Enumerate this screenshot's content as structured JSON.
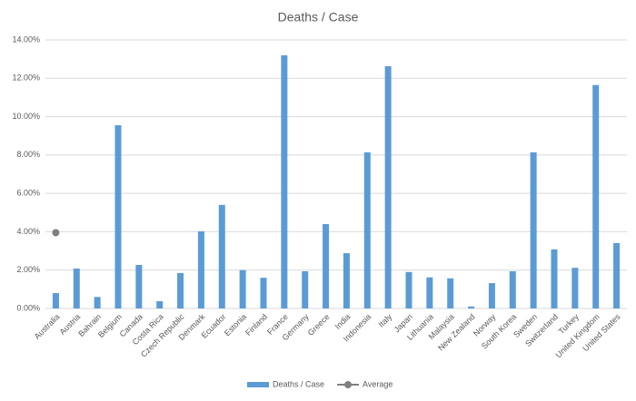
{
  "chart_data": {
    "type": "bar",
    "title": "Deaths / Case",
    "categories": [
      "Australia",
      "Austria",
      "Bahrain",
      "Belgium",
      "Canada",
      "Costa Rica",
      "Czech Republic",
      "Denmark",
      "Ecuador",
      "Estonia",
      "Finland",
      "France",
      "Germany",
      "Greece",
      "India",
      "Indonesia",
      "Italy",
      "Japan",
      "Lithuania",
      "Malaysia",
      "New Zealand",
      "Norway",
      "South Korea",
      "Sweden",
      "Switzerland",
      "Turkey",
      "United Kingdom",
      "United States"
    ],
    "series": [
      {
        "name": "Deaths / Case",
        "type": "bar",
        "color": "#5b9bd5",
        "values": [
          0.8,
          2.08,
          0.6,
          9.55,
          2.27,
          0.38,
          1.85,
          4.02,
          5.4,
          2.0,
          1.6,
          13.2,
          1.94,
          4.4,
          2.88,
          8.14,
          12.63,
          1.9,
          1.62,
          1.57,
          0.1,
          1.32,
          1.94,
          8.14,
          3.08,
          2.12,
          11.65,
          3.41
        ]
      },
      {
        "name": "Average",
        "type": "line",
        "color": "#7f7f7f",
        "values": [
          3.95,
          null,
          null,
          null,
          null,
          null,
          null,
          null,
          null,
          null,
          null,
          null,
          null,
          null,
          null,
          null,
          null,
          null,
          null,
          null,
          null,
          null,
          null,
          null,
          null,
          null,
          null,
          null
        ]
      }
    ],
    "ylim": [
      0,
      14
    ],
    "yticks": [
      {
        "value": 0,
        "label": "0.00%"
      },
      {
        "value": 2,
        "label": "2.00%"
      },
      {
        "value": 4,
        "label": "4.00%"
      },
      {
        "value": 6,
        "label": "6.00%"
      },
      {
        "value": 8,
        "label": "8.00%"
      },
      {
        "value": 10,
        "label": "10.00%"
      },
      {
        "value": 12,
        "label": "12.00%"
      },
      {
        "value": 14,
        "label": "14.00%"
      }
    ],
    "grid": true,
    "legend": "bottom"
  }
}
